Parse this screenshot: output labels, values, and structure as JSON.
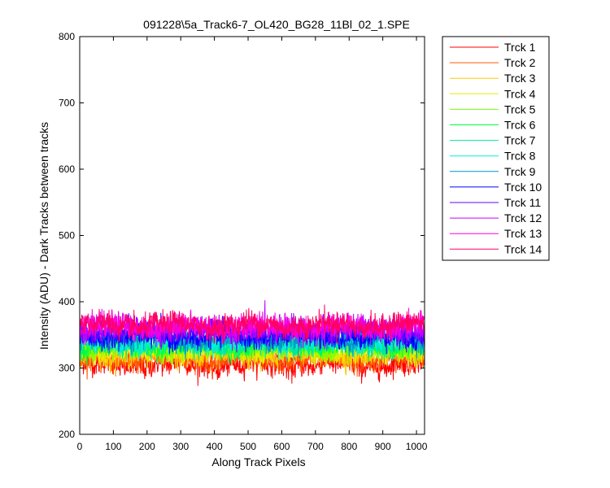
{
  "chart_data": {
    "type": "line",
    "title": "091228\\5a_Track6-7_OL420_BG28_11Bl_02_1.SPE",
    "xlabel": "Along Track Pixels",
    "ylabel": "Intensity (ADU) - Dark Tracks between tracks",
    "xlim": [
      0,
      1024
    ],
    "ylim": [
      200,
      800
    ],
    "xticks": [
      0,
      100,
      200,
      300,
      400,
      500,
      600,
      700,
      800,
      900,
      1000
    ],
    "yticks": [
      200,
      300,
      400,
      500,
      600,
      700,
      800
    ],
    "legend_position": "outside-right",
    "grid": false,
    "n_points": 1024,
    "series": [
      {
        "name": "Trck 1",
        "mean": 305,
        "noise": 11,
        "color": "#ff0000"
      },
      {
        "name": "Trck 2",
        "mean": 313,
        "noise": 10,
        "color": "#ff5a00"
      },
      {
        "name": "Trck 3",
        "mean": 320,
        "noise": 10,
        "color": "#ffc800"
      },
      {
        "name": "Trck 4",
        "mean": 325,
        "noise": 10,
        "color": "#e1f000"
      },
      {
        "name": "Trck 5",
        "mean": 330,
        "noise": 10,
        "color": "#78ff00"
      },
      {
        "name": "Trck 6",
        "mean": 333,
        "noise": 10,
        "color": "#00ff3c"
      },
      {
        "name": "Trck 7",
        "mean": 336,
        "noise": 10,
        "color": "#00e6a0"
      },
      {
        "name": "Trck 8",
        "mean": 339,
        "noise": 10,
        "color": "#00f0dc"
      },
      {
        "name": "Trck 9",
        "mean": 343,
        "noise": 10,
        "color": "#0096c8"
      },
      {
        "name": "Trck 10",
        "mean": 348,
        "noise": 11,
        "color": "#0000ff"
      },
      {
        "name": "Trck 11",
        "mean": 354,
        "noise": 11,
        "color": "#6400ff"
      },
      {
        "name": "Trck 12",
        "mean": 359,
        "noise": 11,
        "color": "#c800ff"
      },
      {
        "name": "Trck 13",
        "mean": 363,
        "noise": 11,
        "color": "#ff00dc"
      },
      {
        "name": "Trck 14",
        "mean": 365,
        "noise": 11,
        "color": "#ff0064"
      }
    ]
  }
}
